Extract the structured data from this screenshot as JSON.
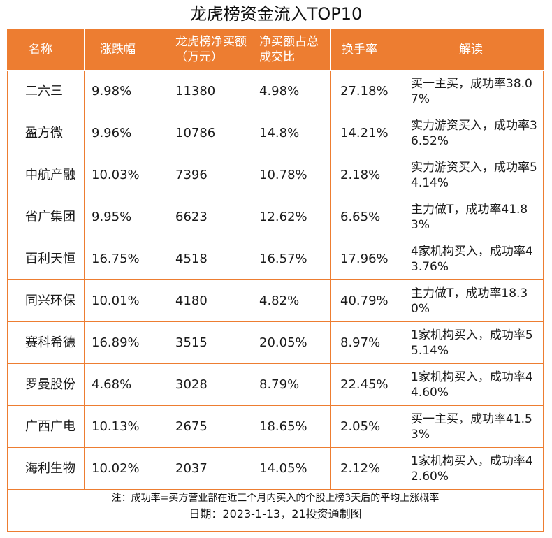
{
  "title": "龙虎榜资金流入TOP10",
  "header": {
    "name": "名称",
    "change": "涨跌幅",
    "net_buy": "龙虎榜净买额（万元）",
    "ratio": "净买额占总成交比",
    "turnover": "换手率",
    "interpretation": "解读"
  },
  "rows": [
    {
      "name": "二六三",
      "change": "9.98%",
      "net_buy": "11380",
      "ratio": "4.98%",
      "turnover": "27.18%",
      "interpretation": "买一主买，成功率38.07%"
    },
    {
      "name": "盈方微",
      "change": "9.96%",
      "net_buy": "10786",
      "ratio": "14.8%",
      "turnover": "14.21%",
      "interpretation": "实力游资买入，成功率36.52%"
    },
    {
      "name": "中航产融",
      "change": "10.03%",
      "net_buy": "7396",
      "ratio": "10.78%",
      "turnover": "2.18%",
      "interpretation": "实力游资买入，成功率54.14%"
    },
    {
      "name": "省广集团",
      "change": "9.95%",
      "net_buy": "6623",
      "ratio": "12.62%",
      "turnover": "6.65%",
      "interpretation": "主力做T，成功率41.83%"
    },
    {
      "name": "百利天恒",
      "change": "16.75%",
      "net_buy": "4518",
      "ratio": "16.57%",
      "turnover": "17.96%",
      "interpretation": "4家机构买入，成功率43.76%"
    },
    {
      "name": "同兴环保",
      "change": "10.01%",
      "net_buy": "4180",
      "ratio": "4.82%",
      "turnover": "40.79%",
      "interpretation": "主力做T，成功率18.30%"
    },
    {
      "name": "赛科希德",
      "change": "16.89%",
      "net_buy": "3515",
      "ratio": "20.05%",
      "turnover": "8.97%",
      "interpretation": "1家机构买入，成功率55.14%"
    },
    {
      "name": "罗曼股份",
      "change": "4.68%",
      "net_buy": "3028",
      "ratio": "8.79%",
      "turnover": "22.45%",
      "interpretation": "1家机构买入，成功率44.60%"
    },
    {
      "name": "广西广电",
      "change": "10.13%",
      "net_buy": "2675",
      "ratio": "18.65%",
      "turnover": "2.05%",
      "interpretation": "买一主买，成功率41.53%"
    },
    {
      "name": "海利生物",
      "change": "10.02%",
      "net_buy": "2037",
      "ratio": "14.05%",
      "turnover": "2.12%",
      "interpretation": "1家机构买入，成功率42.60%"
    }
  ],
  "footer": {
    "note": "注：成功率=买方营业部在近三个月内买入的个股上榜3天后的平均上涨概率",
    "date": "日期：2023-1-13，21投资通制图"
  },
  "colors": {
    "accent": "#ed7d31",
    "header_text": "#ffffff"
  }
}
